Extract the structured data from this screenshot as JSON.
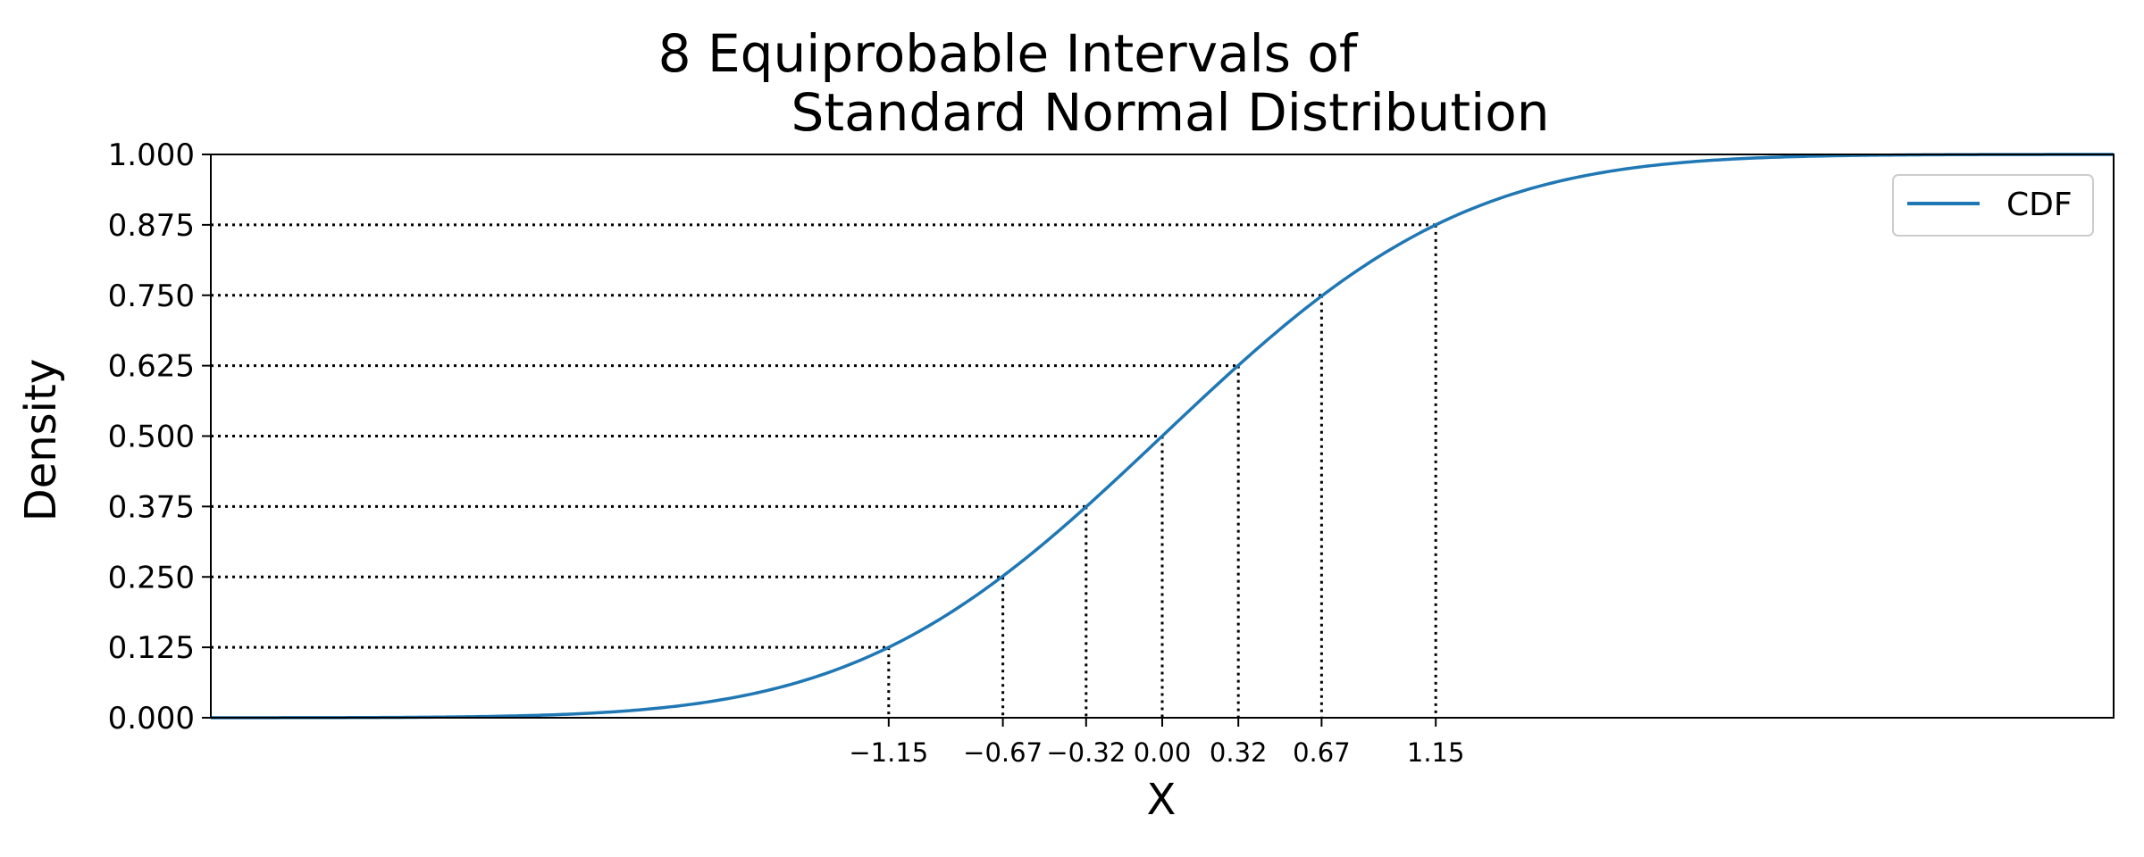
{
  "chart_data": {
    "type": "line",
    "title_lines": [
      "8 Equiprobable Intervals of",
      "Standard Normal Distribution"
    ],
    "xlabel": "X",
    "ylabel": "Density",
    "xlim": [
      -4,
      4
    ],
    "ylim": [
      0,
      1
    ],
    "scale": "linear",
    "grid": false,
    "legend_position": "top-right",
    "series": [
      {
        "name": "CDF",
        "color": "#1f77b4",
        "function": "standard-normal-cdf"
      }
    ],
    "yticks": [
      "0.000",
      "0.125",
      "0.250",
      "0.375",
      "0.500",
      "0.625",
      "0.750",
      "0.875",
      "1.000"
    ],
    "ytick_values": [
      0,
      0.125,
      0.25,
      0.375,
      0.5,
      0.625,
      0.75,
      0.875,
      1.0
    ],
    "xticks": [
      "−1.15",
      "−0.67",
      "−0.32",
      "0.00",
      "0.32",
      "0.67",
      "1.15"
    ],
    "xtick_values": [
      -1.15,
      -0.67,
      -0.32,
      0.0,
      0.32,
      0.67,
      1.15
    ],
    "quantile_markers": [
      {
        "x": -1.15,
        "p": 0.125
      },
      {
        "x": -0.67,
        "p": 0.25
      },
      {
        "x": -0.32,
        "p": 0.375
      },
      {
        "x": 0.0,
        "p": 0.5
      },
      {
        "x": 0.32,
        "p": 0.625
      },
      {
        "x": 0.67,
        "p": 0.75
      },
      {
        "x": 1.15,
        "p": 0.875
      }
    ],
    "reference_line_style": "dotted",
    "reference_line_color": "#000000"
  }
}
